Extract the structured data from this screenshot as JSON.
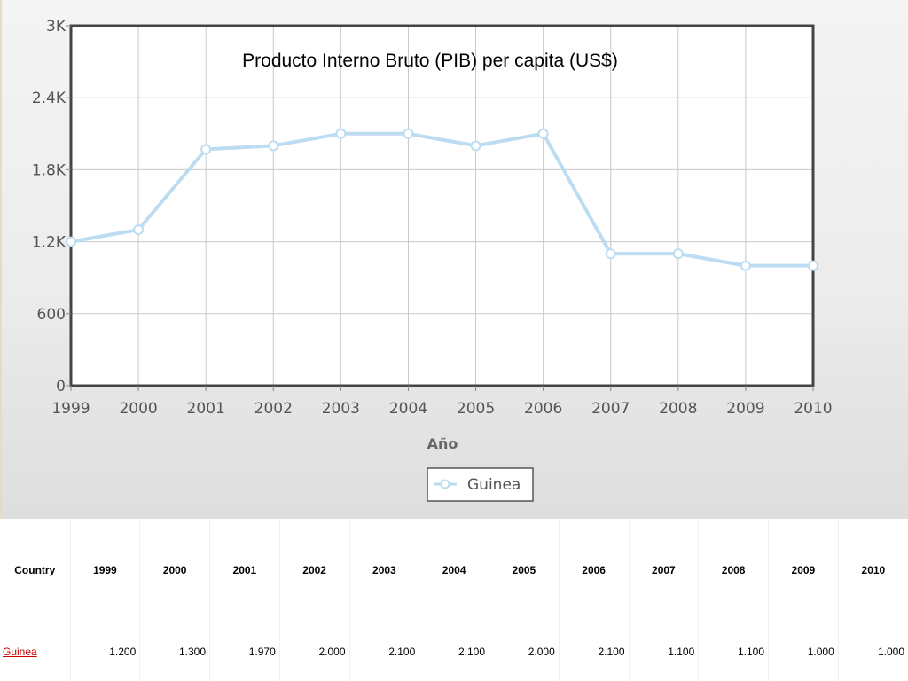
{
  "chart_data": {
    "type": "line",
    "title": "Producto Interno Bruto (PIB) per capita (US$)",
    "xlabel": "Año",
    "ylabel": "",
    "categories": [
      "1999",
      "2000",
      "2001",
      "2002",
      "2003",
      "2004",
      "2005",
      "2006",
      "2007",
      "2008",
      "2009",
      "2010"
    ],
    "ylim": [
      0,
      3000
    ],
    "yticks": [
      0,
      600,
      1200,
      1800,
      2400,
      3000
    ],
    "ytick_labels": [
      "0",
      "600",
      "1.2K",
      "1.8K",
      "2.4K",
      "3K"
    ],
    "series": [
      {
        "name": "Guinea",
        "values": [
          1200,
          1300,
          1970,
          2000,
          2100,
          2100,
          2000,
          2100,
          1100,
          1100,
          1000,
          1000
        ]
      }
    ],
    "grid": true,
    "legend_position": "bottom-center",
    "colors": {
      "line": "#bcdcf2",
      "marker_fill": "#ffffff",
      "marker_stroke": "#bcdcf2",
      "frame": "#444444",
      "grid": "#c8c8c8"
    }
  },
  "table": {
    "header": [
      "Country",
      "1999",
      "2000",
      "2001",
      "2002",
      "2003",
      "2004",
      "2005",
      "2006",
      "2007",
      "2008",
      "2009",
      "2010"
    ],
    "rows": [
      {
        "country": "Guinea",
        "values": [
          "1.200",
          "1.300",
          "1.970",
          "2.000",
          "2.100",
          "2.100",
          "2.000",
          "2.100",
          "1.100",
          "1.100",
          "1.000",
          "1.000"
        ]
      }
    ]
  }
}
